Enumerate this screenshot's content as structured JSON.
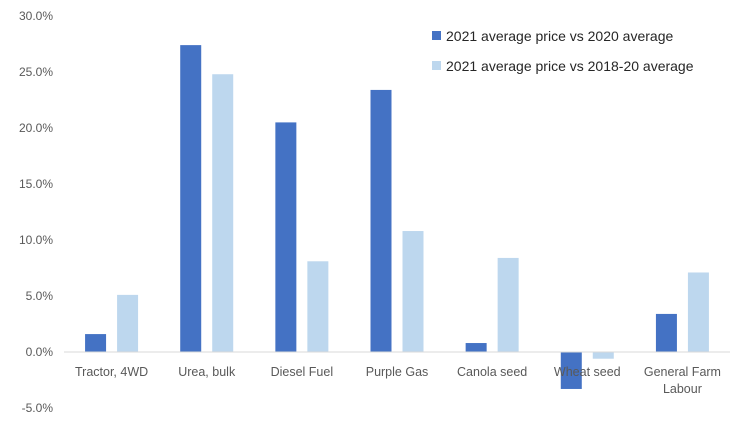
{
  "chart_data": {
    "type": "bar",
    "title": "",
    "xlabel": "",
    "ylabel": "",
    "categories": [
      [
        "Tractor, 4WD"
      ],
      [
        "Urea, bulk"
      ],
      [
        "Diesel Fuel"
      ],
      [
        "Purple Gas"
      ],
      [
        "Canola seed"
      ],
      [
        "Wheat seed"
      ],
      [
        "General Farm",
        "Labour"
      ]
    ],
    "series": [
      {
        "name": "2021 average price vs 2020 average",
        "color": "#4472C4",
        "values": [
          1.6,
          27.4,
          20.5,
          23.4,
          0.8,
          -3.3,
          3.4
        ]
      },
      {
        "name": "2021 average price vs 2018-20 average",
        "color": "#BDD7EE",
        "values": [
          5.1,
          24.8,
          8.1,
          10.8,
          8.4,
          -0.6,
          7.1
        ]
      }
    ],
    "ylim": [
      -5,
      30
    ],
    "ytick_step": 5,
    "ytick_labels": [
      "-5.0%",
      "0.0%",
      "5.0%",
      "10.0%",
      "15.0%",
      "20.0%",
      "25.0%",
      "30.0%"
    ],
    "grid": false,
    "legend_position": "top-right"
  }
}
